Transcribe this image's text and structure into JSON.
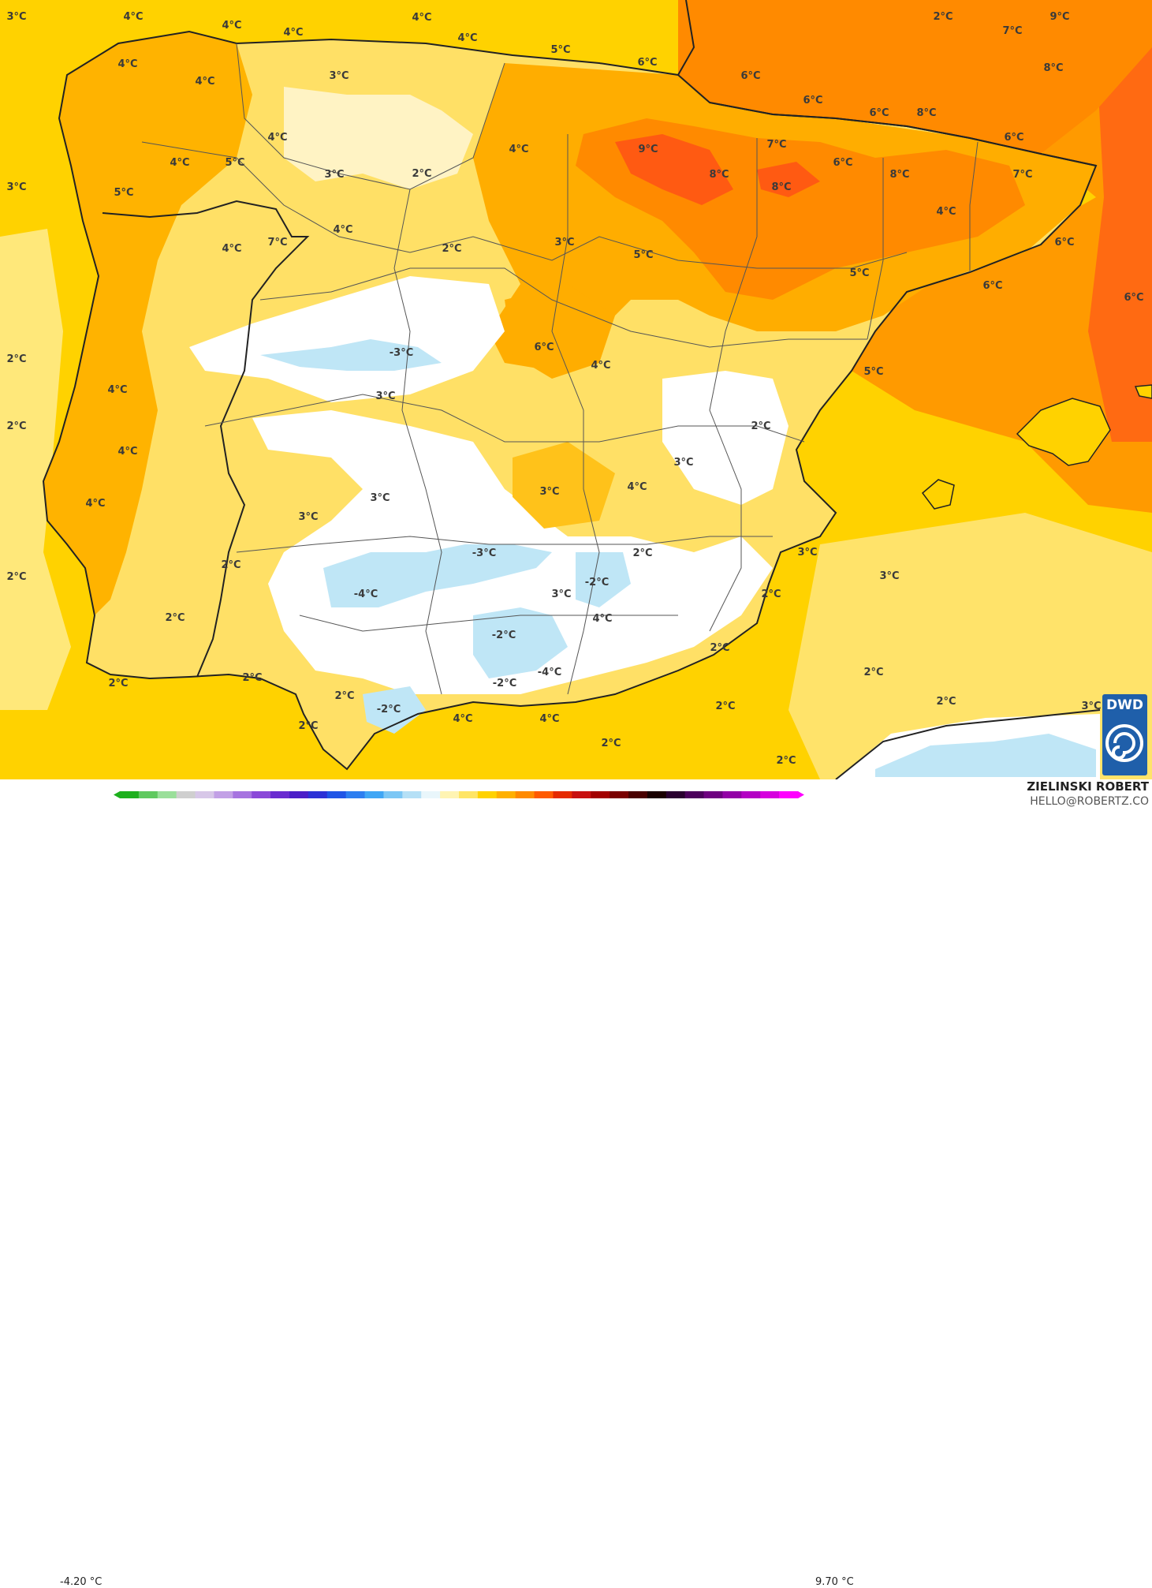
{
  "map": {
    "colors": {
      "sea": "#ffd200",
      "warm": "#ff9a00",
      "hot": "#ff6a12",
      "cold": "#ffffff",
      "ice": "#bfe6f6",
      "land_border": "#222222"
    },
    "labels": [
      {
        "id": "l1",
        "text": "3°C"
      },
      {
        "id": "l2",
        "text": "4°C"
      },
      {
        "id": "l3",
        "text": "4°C"
      },
      {
        "id": "l4",
        "text": "4°C"
      },
      {
        "id": "l5",
        "text": "4°C"
      },
      {
        "id": "l6",
        "text": "4°C"
      },
      {
        "id": "l7",
        "text": "5°C"
      },
      {
        "id": "l8",
        "text": "6°C"
      },
      {
        "id": "l9",
        "text": "2°C"
      },
      {
        "id": "l10",
        "text": "7°C"
      },
      {
        "id": "l11",
        "text": "9°C"
      },
      {
        "id": "l12",
        "text": "8°C"
      },
      {
        "id": "l13",
        "text": "4°C"
      },
      {
        "id": "l14",
        "text": "4°C"
      },
      {
        "id": "l15",
        "text": "3°C"
      },
      {
        "id": "l16",
        "text": "6°C"
      },
      {
        "id": "l17",
        "text": "6°C"
      },
      {
        "id": "l18",
        "text": "6°C"
      },
      {
        "id": "l19",
        "text": "8°C"
      },
      {
        "id": "l20",
        "text": "6°C"
      },
      {
        "id": "l21",
        "text": "4°C"
      },
      {
        "id": "l22",
        "text": "4°C"
      },
      {
        "id": "l23",
        "text": "5°C"
      },
      {
        "id": "l24",
        "text": "3°C"
      },
      {
        "id": "l25",
        "text": "2°C"
      },
      {
        "id": "l26",
        "text": "4°C"
      },
      {
        "id": "l27",
        "text": "9°C"
      },
      {
        "id": "l28",
        "text": "8°C"
      },
      {
        "id": "l29",
        "text": "7°C"
      },
      {
        "id": "l30",
        "text": "6°C"
      },
      {
        "id": "l31",
        "text": "8°C"
      },
      {
        "id": "l32",
        "text": "7°C"
      },
      {
        "id": "l33",
        "text": "5°C"
      },
      {
        "id": "l34",
        "text": "8°C"
      },
      {
        "id": "l35",
        "text": "3°C"
      },
      {
        "id": "l36",
        "text": "4°C"
      },
      {
        "id": "l37",
        "text": "4°C"
      },
      {
        "id": "l38",
        "text": "2°C"
      },
      {
        "id": "l39",
        "text": "3°C"
      },
      {
        "id": "l40",
        "text": "5°C"
      },
      {
        "id": "l41",
        "text": "6°C"
      },
      {
        "id": "l42",
        "text": "4°C"
      },
      {
        "id": "l43",
        "text": "7°C"
      },
      {
        "id": "l44",
        "text": "5°C"
      },
      {
        "id": "l45",
        "text": "6°C"
      },
      {
        "id": "l46",
        "text": "6°C"
      },
      {
        "id": "l47",
        "text": "2°C"
      },
      {
        "id": "l48",
        "text": "-3°C"
      },
      {
        "id": "l49",
        "text": "6°C"
      },
      {
        "id": "l50",
        "text": "4°C"
      },
      {
        "id": "l51",
        "text": "5°C"
      },
      {
        "id": "l52",
        "text": "4°C"
      },
      {
        "id": "l53",
        "text": "3°C"
      },
      {
        "id": "l54",
        "text": "2°C"
      },
      {
        "id": "l55",
        "text": "2°C"
      },
      {
        "id": "l56",
        "text": "4°C"
      },
      {
        "id": "l57",
        "text": "3°C"
      },
      {
        "id": "l58",
        "text": "3°C"
      },
      {
        "id": "l59",
        "text": "4°C"
      },
      {
        "id": "l60",
        "text": "4°C"
      },
      {
        "id": "l61",
        "text": "3°C"
      },
      {
        "id": "l62",
        "text": "2°C"
      },
      {
        "id": "l63",
        "text": "2°C"
      },
      {
        "id": "l64",
        "text": "-3°C"
      },
      {
        "id": "l65",
        "text": "2°C"
      },
      {
        "id": "l66",
        "text": "3°C"
      },
      {
        "id": "l67",
        "text": "-4°C"
      },
      {
        "id": "l68",
        "text": "3°C"
      },
      {
        "id": "l69",
        "text": "-2°C"
      },
      {
        "id": "l70",
        "text": "2°C"
      },
      {
        "id": "l71",
        "text": "3°C"
      },
      {
        "id": "l72",
        "text": "2°C"
      },
      {
        "id": "l73",
        "text": "4°C"
      },
      {
        "id": "l74",
        "text": "-2°C"
      },
      {
        "id": "l75",
        "text": "2°C"
      },
      {
        "id": "l76",
        "text": "3°C"
      },
      {
        "id": "l77",
        "text": "2°C"
      },
      {
        "id": "l78",
        "text": "-2°C"
      },
      {
        "id": "l79",
        "text": "-4°C"
      },
      {
        "id": "l80",
        "text": "2°C"
      },
      {
        "id": "l81",
        "text": "2°C"
      },
      {
        "id": "l82",
        "text": "2°C"
      },
      {
        "id": "l83",
        "text": "-2°C"
      },
      {
        "id": "l84",
        "text": "2°C"
      },
      {
        "id": "l85",
        "text": "4°C"
      },
      {
        "id": "l86",
        "text": "4°C"
      },
      {
        "id": "l87",
        "text": "2°C"
      },
      {
        "id": "l88",
        "text": "2°C"
      },
      {
        "id": "l89",
        "text": "2°C"
      },
      {
        "id": "l90",
        "text": "2°C"
      },
      {
        "id": "l91",
        "text": "3°C"
      }
    ]
  },
  "legend": {
    "min_value": "-4.20 °C",
    "max_value": "9.70 °C",
    "ticks": [
      "-32",
      "-24",
      "-16",
      "-8",
      "0",
      "8",
      "16",
      "24",
      "32"
    ],
    "colors": [
      "#1db01d",
      "#5fc95f",
      "#9adf9a",
      "#cfcfcf",
      "#d7c7e8",
      "#c2a0e6",
      "#a673e0",
      "#8a48d8",
      "#6a2bd0",
      "#4b1ec8",
      "#2c31d6",
      "#1f55e6",
      "#2c7ef0",
      "#3fa6f5",
      "#7cc7f5",
      "#b5e0f6",
      "#e9f6fb",
      "#fff4b3",
      "#ffe566",
      "#ffd200",
      "#ffb000",
      "#ff8a00",
      "#ff5a00",
      "#e52a00",
      "#c81010",
      "#a30000",
      "#7a0000",
      "#4a0000",
      "#1a0000",
      "#2a0030",
      "#4c005c",
      "#6e0080",
      "#9300a6",
      "#b400c4",
      "#d600de",
      "#ff00ff"
    ]
  },
  "credits": {
    "author": "ZIELINSKI ROBERT",
    "email": "HELLO@ROBERTZ.CO",
    "logo_text": "DWD"
  }
}
